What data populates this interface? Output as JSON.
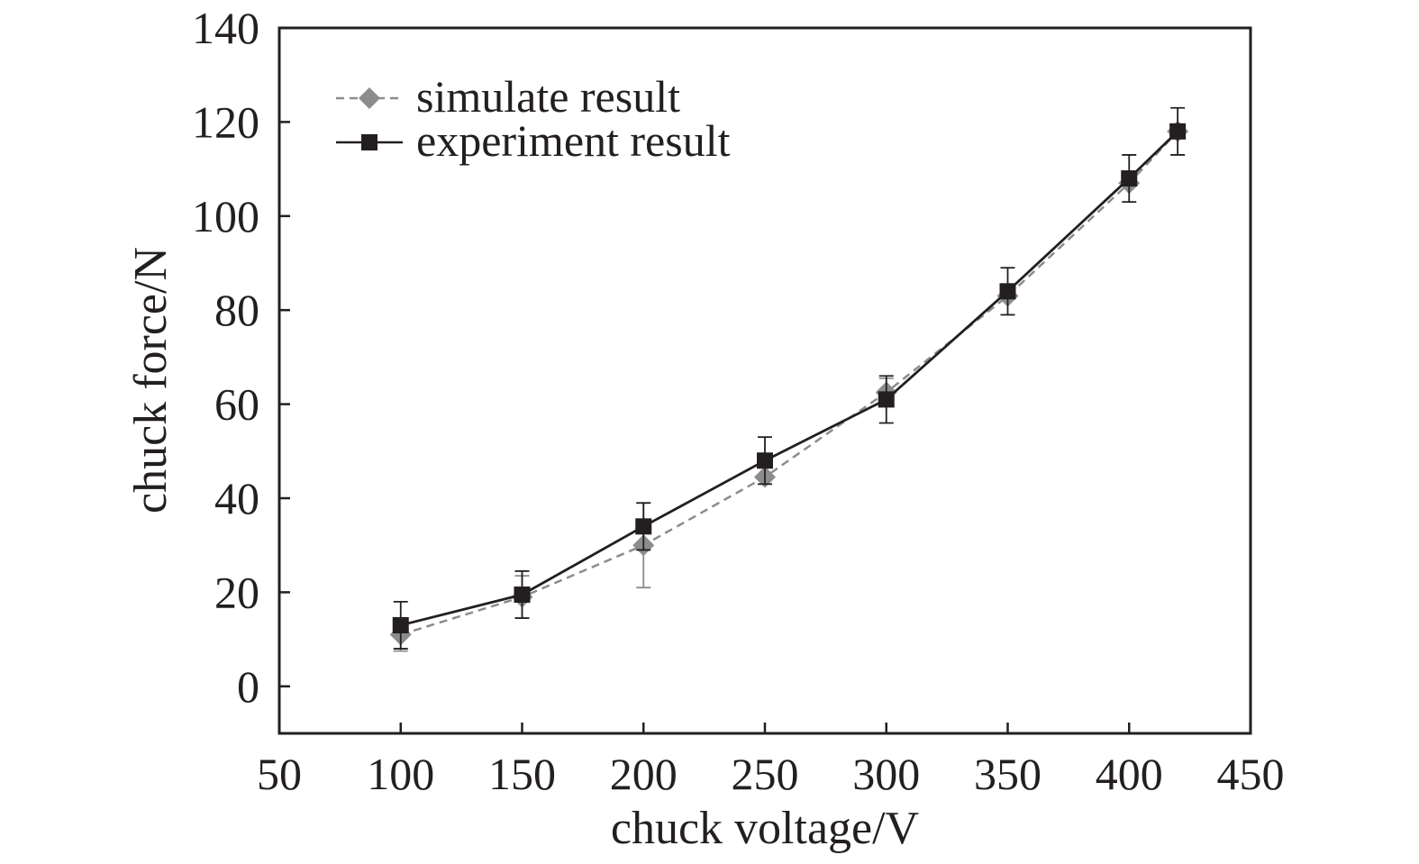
{
  "chart_data": {
    "type": "line",
    "xlabel": "chuck voltage/V",
    "ylabel": "chuck force/N",
    "xlim": [
      50,
      450
    ],
    "ylim": [
      -10,
      140
    ],
    "xticks": [
      50,
      100,
      150,
      200,
      250,
      300,
      350,
      400,
      450
    ],
    "yticks": [
      0,
      20,
      40,
      60,
      80,
      100,
      120,
      140
    ],
    "grid": false,
    "legend_position": "top-left",
    "x": [
      100,
      150,
      200,
      250,
      300,
      350,
      400,
      420
    ],
    "series": [
      {
        "name": "simulate result",
        "values": [
          11,
          19,
          30,
          44.5,
          62.5,
          83,
          107,
          118
        ],
        "error": [
          3.5,
          4.5,
          9,
          0,
          3,
          0,
          0,
          0
        ],
        "color": "#8c8c8c",
        "line_style": "dashed",
        "marker": "diamond"
      },
      {
        "name": "experiment result",
        "values": [
          13,
          19.5,
          34,
          48,
          61,
          84,
          108,
          118
        ],
        "error": [
          5,
          5,
          5,
          5,
          5,
          5,
          5,
          5
        ],
        "color": "#231f20",
        "line_style": "solid",
        "marker": "square"
      }
    ]
  }
}
